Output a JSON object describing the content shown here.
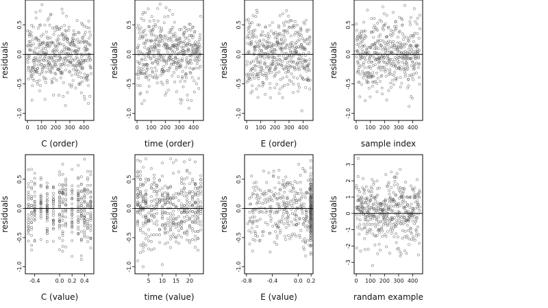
{
  "chart_data": [
    {
      "type": "scatter",
      "xlabel": "C (order)",
      "ylabel": "residuals",
      "xlim": [
        -15,
        470
      ],
      "ylim": [
        -1.12,
        0.92
      ],
      "xticks": [
        0,
        100,
        200,
        300,
        400
      ],
      "xtick_labels": [
        "0",
        "100",
        "200",
        "300",
        "400"
      ],
      "yticks": [
        -1.0,
        -0.5,
        0.0,
        0.5
      ],
      "ytick_labels": [
        "-1.0",
        "-0.5",
        "0.0",
        "0.5"
      ],
      "hline": 0,
      "x_pattern": "index",
      "n_points": 450,
      "x_range": [
        0,
        450
      ],
      "y_range": [
        -1.0,
        0.85
      ],
      "seed": 11,
      "grid": false
    },
    {
      "type": "scatter",
      "xlabel": "time (order)",
      "ylabel": "residuals",
      "xlim": [
        -15,
        470
      ],
      "ylim": [
        -1.12,
        0.92
      ],
      "xticks": [
        0,
        100,
        200,
        300,
        400
      ],
      "xtick_labels": [
        "0",
        "100",
        "200",
        "300",
        "400"
      ],
      "yticks": [
        -1.0,
        -0.5,
        0.0,
        0.5
      ],
      "ytick_labels": [
        "-1.0",
        "-0.5",
        "0.0",
        "0.5"
      ],
      "hline": 0,
      "x_pattern": "index",
      "n_points": 450,
      "x_range": [
        0,
        450
      ],
      "y_range": [
        -1.0,
        0.85
      ],
      "seed": 23,
      "grid": false
    },
    {
      "type": "scatter",
      "xlabel": "E (order)",
      "ylabel": "residuals",
      "xlim": [
        -15,
        470
      ],
      "ylim": [
        -1.12,
        0.92
      ],
      "xticks": [
        0,
        100,
        200,
        300,
        400
      ],
      "xtick_labels": [
        "0",
        "100",
        "200",
        "300",
        "400"
      ],
      "yticks": [
        -1.0,
        -0.5,
        0.0,
        0.5
      ],
      "ytick_labels": [
        "-1.0",
        "-0.5",
        "0.0",
        "0.5"
      ],
      "hline": 0,
      "x_pattern": "index",
      "n_points": 450,
      "x_range": [
        0,
        450
      ],
      "y_range": [
        -1.0,
        0.85
      ],
      "seed": 37,
      "grid": false
    },
    {
      "type": "scatter",
      "xlabel": "sample index",
      "ylabel": "residuals",
      "xlim": [
        -15,
        470
      ],
      "ylim": [
        -1.12,
        0.92
      ],
      "xticks": [
        0,
        100,
        200,
        300,
        400
      ],
      "xtick_labels": [
        "0",
        "100",
        "200",
        "300",
        "400"
      ],
      "yticks": [
        -1.0,
        -0.5,
        0.0,
        0.5
      ],
      "ytick_labels": [
        "-1.0",
        "-0.5",
        "0.0",
        "0.5"
      ],
      "hline": 0,
      "x_pattern": "index",
      "n_points": 450,
      "x_range": [
        0,
        450
      ],
      "y_range": [
        -1.0,
        0.85
      ],
      "seed": 41,
      "grid": false
    },
    {
      "type": "scatter",
      "xlabel": "C (value)",
      "ylabel": "residuals",
      "xlim": [
        -0.55,
        0.55
      ],
      "ylim": [
        -1.12,
        0.92
      ],
      "xticks": [
        -0.4,
        0.0,
        0.2,
        0.4
      ],
      "xtick_labels": [
        "-0.4",
        "0.0",
        "0.2",
        "0.4"
      ],
      "yticks": [
        -1.0,
        -0.5,
        0.0,
        0.5
      ],
      "ytick_labels": [
        "-1.0",
        "-0.5",
        "0.0",
        "0.5"
      ],
      "hline": 0,
      "x_pattern": "discrete",
      "x_levels": [
        -0.5,
        -0.45,
        -0.4,
        -0.3,
        -0.2,
        -0.1,
        0.0,
        0.05,
        0.1,
        0.2,
        0.3,
        0.35,
        0.4,
        0.45,
        0.5
      ],
      "n_points": 400,
      "y_range": [
        -1.0,
        0.85
      ],
      "seed": 53,
      "grid": false
    },
    {
      "type": "scatter",
      "xlabel": "time (value)",
      "ylabel": "residuals",
      "xlim": [
        0,
        25
      ],
      "ylim": [
        -1.12,
        0.92
      ],
      "xticks": [
        5,
        10,
        15,
        20
      ],
      "xtick_labels": [
        "5",
        "10",
        "15",
        "20"
      ],
      "yticks": [
        -1.0,
        -0.5,
        0.0,
        0.5
      ],
      "ytick_labels": [
        "-1.0",
        "-0.5",
        "0.0",
        "0.5"
      ],
      "hline": 0,
      "x_pattern": "discrete",
      "x_levels": [
        1,
        2,
        3,
        4,
        5,
        6,
        7,
        8,
        9,
        10,
        11,
        12,
        13,
        14,
        15,
        16,
        17,
        18,
        19,
        20,
        21,
        22,
        23,
        24
      ],
      "n_points": 450,
      "y_range": [
        -1.0,
        0.85
      ],
      "seed": 67,
      "grid": false
    },
    {
      "type": "scatter",
      "xlabel": "E (value)",
      "ylabel": "residuals",
      "xlim": [
        -0.83,
        0.23
      ],
      "ylim": [
        -1.12,
        0.92
      ],
      "xticks": [
        -0.8,
        -0.4,
        0.0,
        0.2
      ],
      "xtick_labels": [
        "-0.8",
        "-0.4",
        "0.0",
        "0.2"
      ],
      "yticks": [
        -1.0,
        -0.5,
        0.0,
        0.5
      ],
      "ytick_labels": [
        "-1.0",
        "-0.5",
        "0.0",
        "0.5"
      ],
      "hline": 0,
      "x_pattern": "skewed",
      "n_points": 450,
      "x_range": [
        -0.8,
        0.2
      ],
      "y_range": [
        -1.0,
        0.85
      ],
      "seed": 79,
      "grid": false
    },
    {
      "type": "scatter",
      "xlabel": "randam example",
      "ylabel": "residuals",
      "xlim": [
        -15,
        470
      ],
      "ylim": [
        -3.7,
        3.6
      ],
      "xticks": [
        0,
        100,
        200,
        300,
        400
      ],
      "xtick_labels": [
        "0",
        "100",
        "200",
        "300",
        "400"
      ],
      "yticks": [
        -3,
        -2,
        -1,
        0,
        1,
        2,
        3
      ],
      "ytick_labels": [
        "-3",
        "-2",
        "-1",
        "0",
        "1",
        "2",
        "3"
      ],
      "hline": 0,
      "x_pattern": "index",
      "n_points": 450,
      "x_range": [
        0,
        450
      ],
      "y_range": [
        -3.2,
        3.4
      ],
      "seed": 97,
      "grid": false
    }
  ]
}
